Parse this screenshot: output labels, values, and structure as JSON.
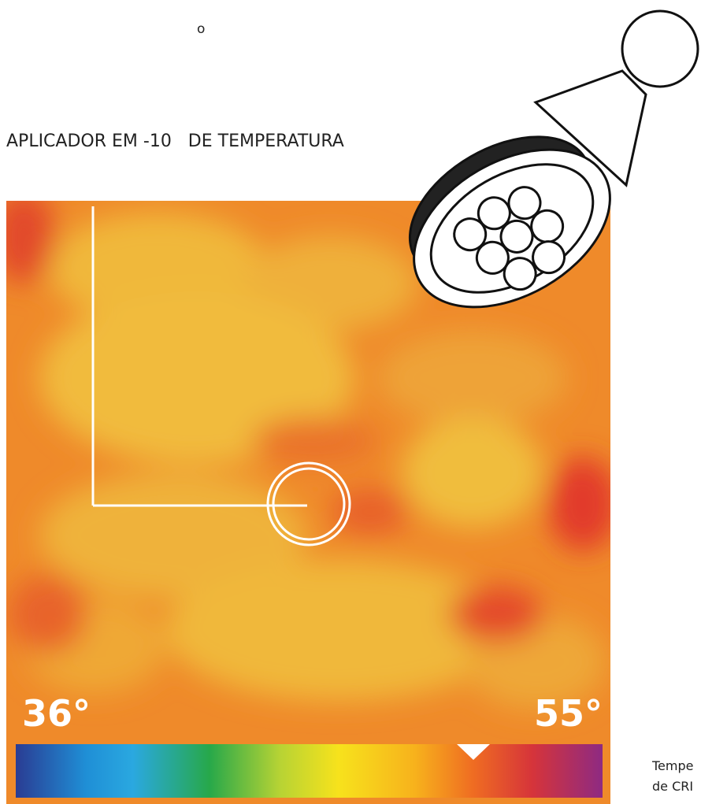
{
  "degree_mark": "o",
  "title": "APLICADOR EM -10   DE TEMPERATURA",
  "scale": {
    "min_label": "36°",
    "max_label": "55°"
  },
  "caption": {
    "line1": "Tempe",
    "line2": "de CRI"
  }
}
